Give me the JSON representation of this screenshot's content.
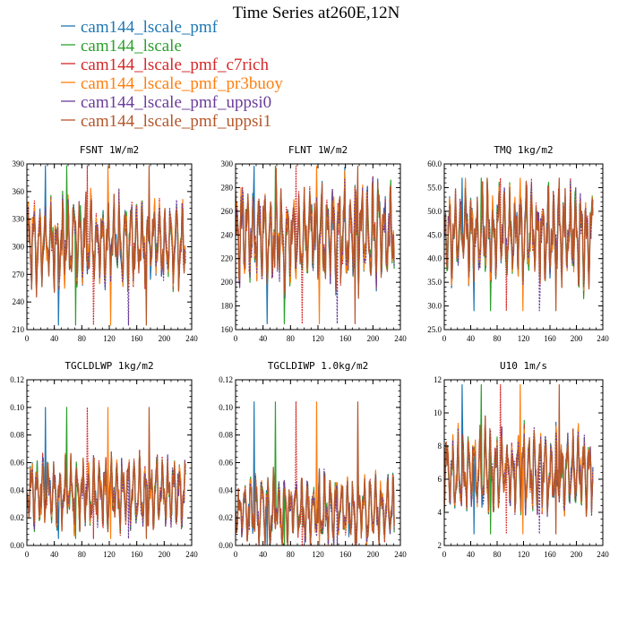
{
  "figure": {
    "title": "Time Series at260E,12N"
  },
  "legend": [
    {
      "name": "cam144_lscale_pmf",
      "color": "#1f77b4"
    },
    {
      "name": "cam144_lscale",
      "color": "#2ca02c"
    },
    {
      "name": "cam144_lscale_pmf_c7rich",
      "color": "#d62728"
    },
    {
      "name": "cam144_lscale_pmf_pr3buoy",
      "color": "#ff7f0e"
    },
    {
      "name": "cam144_lscale_pmf_uppsi0",
      "color": "#6a3d9a"
    },
    {
      "name": "cam144_lscale_pmf_uppsi1",
      "color": "#b5562a"
    }
  ],
  "chart_data": [
    {
      "type": "line",
      "title": "FSNT   1W/m2",
      "xlim": [
        0,
        240
      ],
      "ylim": [
        210,
        390
      ],
      "xticks": [
        "0",
        "40",
        "80",
        "120",
        "160",
        "200",
        "240"
      ],
      "yticks": [
        "210",
        "240",
        "270",
        "300",
        "330",
        "360",
        "390"
      ],
      "n": 232,
      "center": 305,
      "amplitude": 38,
      "min_value": 215,
      "max_value": 388,
      "series": [
        "cam144_lscale_pmf",
        "cam144_lscale",
        "cam144_lscale_pmf_c7rich",
        "cam144_lscale_pmf_pr3buoy",
        "cam144_lscale_pmf_uppsi0",
        "cam144_lscale_pmf_uppsi1"
      ]
    },
    {
      "type": "line",
      "title": "FLNT   1W/m2",
      "xlim": [
        0,
        240
      ],
      "ylim": [
        160,
        300
      ],
      "xticks": [
        "0",
        "40",
        "80",
        "120",
        "160",
        "200",
        "240"
      ],
      "yticks": [
        "160",
        "180",
        "200",
        "220",
        "240",
        "260",
        "280",
        "300"
      ],
      "n": 232,
      "center": 240,
      "amplitude": 35,
      "min_value": 165,
      "max_value": 298,
      "series": [
        "cam144_lscale_pmf",
        "cam144_lscale",
        "cam144_lscale_pmf_c7rich",
        "cam144_lscale_pmf_pr3buoy",
        "cam144_lscale_pmf_uppsi0",
        "cam144_lscale_pmf_uppsi1"
      ]
    },
    {
      "type": "line",
      "title": "TMQ   1kg/m2",
      "xlim": [
        0,
        240
      ],
      "ylim": [
        25,
        60
      ],
      "xticks": [
        "0",
        "40",
        "80",
        "120",
        "160",
        "200",
        "240"
      ],
      "yticks": [
        "25.0",
        "30.0",
        "35.0",
        "40.0",
        "45.0",
        "50.0",
        "55.0",
        "60.0"
      ],
      "n": 226,
      "center": 45,
      "amplitude": 8,
      "min_value": 29,
      "max_value": 57,
      "series": [
        "cam144_lscale_pmf",
        "cam144_lscale",
        "cam144_lscale_pmf_c7rich",
        "cam144_lscale_pmf_pr3buoy",
        "cam144_lscale_pmf_uppsi0",
        "cam144_lscale_pmf_uppsi1"
      ]
    },
    {
      "type": "line",
      "title": "TGCLDLWP   1kg/m2",
      "xlim": [
        0,
        240
      ],
      "ylim": [
        0,
        0.12
      ],
      "xticks": [
        "0",
        "40",
        "80",
        "120",
        "160",
        "200",
        "240"
      ],
      "yticks": [
        "0.00",
        "0.02",
        "0.04",
        "0.06",
        "0.08",
        "0.10",
        "0.12"
      ],
      "n": 232,
      "center": 0.038,
      "amplitude": 0.02,
      "min_value": 0.005,
      "max_value": 0.1,
      "series": [
        "cam144_lscale_pmf",
        "cam144_lscale",
        "cam144_lscale_pmf_c7rich",
        "cam144_lscale_pmf_pr3buoy",
        "cam144_lscale_pmf_uppsi0",
        "cam144_lscale_pmf_uppsi1"
      ]
    },
    {
      "type": "line",
      "title": "TGCLDIWP   1.0kg/m2",
      "xlim": [
        0,
        240
      ],
      "ylim": [
        0,
        0.12
      ],
      "xticks": [
        "0",
        "40",
        "80",
        "120",
        "160",
        "200",
        "240"
      ],
      "yticks": [
        "0.00",
        "0.02",
        "0.04",
        "0.06",
        "0.08",
        "0.10",
        "0.12"
      ],
      "n": 232,
      "center": 0.025,
      "amplitude": 0.02,
      "min_value": 0.0,
      "max_value": 0.104,
      "series": [
        "cam144_lscale_pmf",
        "cam144_lscale",
        "cam144_lscale_pmf_c7rich",
        "cam144_lscale_pmf_pr3buoy",
        "cam144_lscale_pmf_uppsi0",
        "cam144_lscale_pmf_uppsi1"
      ]
    },
    {
      "type": "line",
      "title": "U10   1m/s",
      "xlim": [
        0,
        240
      ],
      "ylim": [
        2,
        12
      ],
      "xticks": [
        "0",
        "40",
        "80",
        "120",
        "160",
        "200",
        "240"
      ],
      "yticks": [
        "2",
        "4",
        "6",
        "8",
        "10",
        "12"
      ],
      "n": 226,
      "center": 6.5,
      "amplitude": 2,
      "min_value": 2.7,
      "max_value": 11.7,
      "series": [
        "cam144_lscale_pmf",
        "cam144_lscale",
        "cam144_lscale_pmf_c7rich",
        "cam144_lscale_pmf_pr3buoy",
        "cam144_lscale_pmf_uppsi0",
        "cam144_lscale_pmf_uppsi1"
      ]
    }
  ]
}
